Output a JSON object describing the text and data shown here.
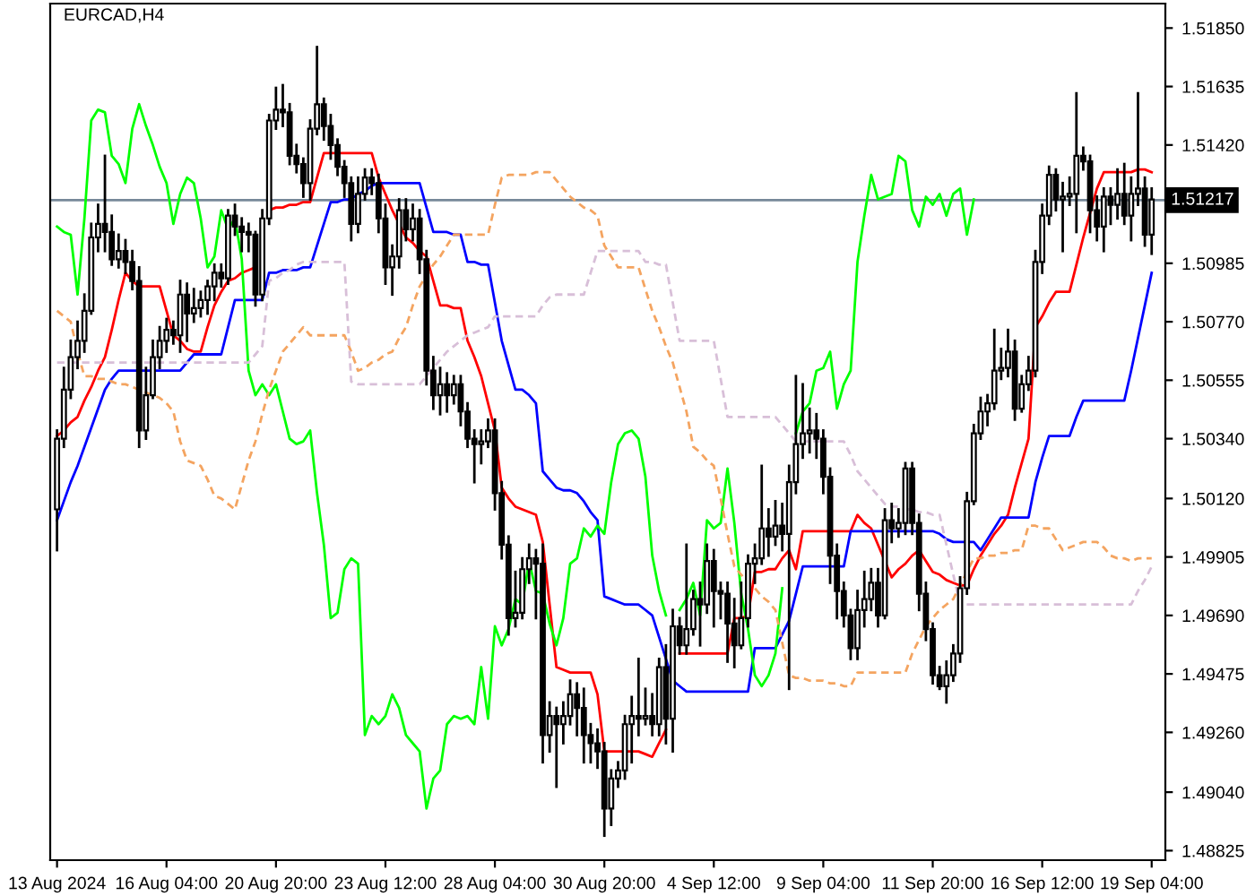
{
  "chart_data": {
    "type": "candlestick",
    "title": "EURCAD,H4",
    "categories": [
      "13 Aug 2024",
      null,
      null,
      null,
      null,
      null,
      null,
      null,
      null,
      null,
      null,
      null,
      null,
      null,
      null,
      null,
      "16 Aug 04:00",
      null,
      null,
      null,
      null,
      null,
      null,
      null,
      null,
      null,
      null,
      null,
      null,
      null,
      null,
      null,
      "20 Aug 20:00",
      null,
      null,
      null,
      null,
      null,
      null,
      null,
      null,
      null,
      null,
      null,
      null,
      null,
      null,
      null,
      "23 Aug 12:00",
      null,
      null,
      null,
      null,
      null,
      null,
      null,
      null,
      null,
      null,
      null,
      null,
      null,
      null,
      null,
      "28 Aug 04:00",
      null,
      null,
      null,
      null,
      null,
      null,
      null,
      null,
      null,
      null,
      null,
      null,
      null,
      null,
      null,
      "30 Aug 20:00",
      null,
      null,
      null,
      null,
      null,
      null,
      null,
      null,
      null,
      null,
      null,
      null,
      null,
      null,
      null,
      "4 Sep 12:00",
      null,
      null,
      null,
      null,
      null,
      null,
      null,
      null,
      null,
      null,
      null,
      null,
      null,
      null,
      null,
      "9 Sep 04:00",
      null,
      null,
      null,
      null,
      null,
      null,
      null,
      null,
      null,
      null,
      null,
      null,
      null,
      null,
      null,
      "11 Sep 20:00",
      null,
      null,
      null,
      null,
      null,
      null,
      null,
      null,
      null,
      null,
      null,
      null,
      null,
      null,
      null,
      "16 Sep 12:00",
      null,
      null,
      null,
      null,
      null,
      null,
      null,
      null,
      null,
      null,
      null,
      null,
      null,
      null,
      null,
      "19 Sep 04:00"
    ],
    "ohlc": [
      [
        1.5008,
        1.5037,
        1.4993,
        1.5034
      ],
      [
        1.5034,
        1.506,
        1.5031,
        1.5052
      ],
      [
        1.5052,
        1.507,
        1.5049,
        1.5064
      ],
      [
        1.5064,
        1.5077,
        1.506,
        1.507
      ],
      [
        1.507,
        1.5087,
        1.5066,
        1.5081
      ],
      [
        1.5081,
        1.5113,
        1.508,
        1.5108
      ],
      [
        1.5108,
        1.512,
        1.5103,
        1.5113
      ],
      [
        1.5113,
        1.5138,
        1.5103,
        1.511
      ],
      [
        1.511,
        1.5116,
        1.5098,
        1.51
      ],
      [
        1.51,
        1.5109,
        1.5097,
        1.5103
      ],
      [
        1.5103,
        1.5107,
        1.5095,
        1.5099
      ],
      [
        1.5099,
        1.5103,
        1.5089,
        1.5092
      ],
      [
        1.5092,
        1.5097,
        1.5031,
        1.5037
      ],
      [
        1.5037,
        1.506,
        1.5034,
        1.505
      ],
      [
        1.505,
        1.507,
        1.5049,
        1.5064
      ],
      [
        1.5064,
        1.5075,
        1.506,
        1.507
      ],
      [
        1.507,
        1.5078,
        1.5066,
        1.5074
      ],
      [
        1.5074,
        1.5077,
        1.5069,
        1.5072
      ],
      [
        1.5072,
        1.5092,
        1.5066,
        1.5087
      ],
      [
        1.5087,
        1.5091,
        1.507,
        1.508
      ],
      [
        1.508,
        1.5089,
        1.5077,
        1.5082
      ],
      [
        1.5082,
        1.5088,
        1.5079,
        1.5085
      ],
      [
        1.5085,
        1.5092,
        1.508,
        1.509
      ],
      [
        1.509,
        1.5098,
        1.5085,
        1.5095
      ],
      [
        1.5095,
        1.5098,
        1.509,
        1.5093
      ],
      [
        1.5093,
        1.5118,
        1.5091,
        1.5116
      ],
      [
        1.5116,
        1.512,
        1.5109,
        1.5112
      ],
      [
        1.5112,
        1.5115,
        1.5103,
        1.511
      ],
      [
        1.511,
        1.5113,
        1.5103,
        1.5109
      ],
      [
        1.5109,
        1.511,
        1.5083,
        1.5087
      ],
      [
        1.5087,
        1.5118,
        1.5085,
        1.5115
      ],
      [
        1.5115,
        1.5153,
        1.5113,
        1.5151
      ],
      [
        1.5151,
        1.5163,
        1.5148,
        1.5155
      ],
      [
        1.5155,
        1.5164,
        1.5149,
        1.5154
      ],
      [
        1.5154,
        1.5157,
        1.5135,
        1.5138
      ],
      [
        1.5138,
        1.5142,
        1.5132,
        1.5135
      ],
      [
        1.5135,
        1.5137,
        1.5123,
        1.5128
      ],
      [
        1.5128,
        1.5151,
        1.5122,
        1.5148
      ],
      [
        1.5148,
        1.5178,
        1.5146,
        1.5157
      ],
      [
        1.5157,
        1.5159,
        1.5144,
        1.5149
      ],
      [
        1.5149,
        1.5153,
        1.5137,
        1.5142
      ],
      [
        1.5142,
        1.5144,
        1.5131,
        1.5134
      ],
      [
        1.5134,
        1.5136,
        1.5123,
        1.5128
      ],
      [
        1.5128,
        1.513,
        1.5107,
        1.5113
      ],
      [
        1.5113,
        1.513,
        1.511,
        1.5124
      ],
      [
        1.5124,
        1.5133,
        1.5122,
        1.513
      ],
      [
        1.513,
        1.5133,
        1.5124,
        1.5128
      ],
      [
        1.5128,
        1.5131,
        1.511,
        1.5115
      ],
      [
        1.5115,
        1.512,
        1.5091,
        1.5097
      ],
      [
        1.5097,
        1.5105,
        1.5087,
        1.5101
      ],
      [
        1.5101,
        1.5122,
        1.5097,
        1.5118
      ],
      [
        1.5118,
        1.5122,
        1.5107,
        1.5111
      ],
      [
        1.5111,
        1.512,
        1.5107,
        1.5115
      ],
      [
        1.5115,
        1.5118,
        1.5095,
        1.51
      ],
      [
        1.51,
        1.5103,
        1.5054,
        1.5059
      ],
      [
        1.5059,
        1.5064,
        1.5045,
        1.505
      ],
      [
        1.505,
        1.506,
        1.5043,
        1.5054
      ],
      [
        1.5054,
        1.5058,
        1.5044,
        1.505
      ],
      [
        1.505,
        1.5057,
        1.5047,
        1.5054
      ],
      [
        1.5054,
        1.5057,
        1.5039,
        1.5044
      ],
      [
        1.5044,
        1.5047,
        1.5031,
        1.5034
      ],
      [
        1.5034,
        1.5037,
        1.5018,
        1.5032
      ],
      [
        1.5032,
        1.5037,
        1.5025,
        1.5033
      ],
      [
        1.5033,
        1.5041,
        1.5031,
        1.5037
      ],
      [
        1.5037,
        1.5041,
        1.5008,
        1.5014
      ],
      [
        1.5014,
        1.5018,
        1.499,
        1.4995
      ],
      [
        1.4995,
        1.4998,
        1.4962,
        1.4968
      ],
      [
        1.4968,
        1.4985,
        1.4965,
        1.497
      ],
      [
        1.497,
        1.499,
        1.4968,
        1.4986
      ],
      [
        1.4986,
        1.4995,
        1.4981,
        1.499
      ],
      [
        1.499,
        1.4993,
        1.4968,
        1.4988
      ],
      [
        1.4988,
        1.4995,
        1.4915,
        1.4925
      ],
      [
        1.4925,
        1.4937,
        1.4919,
        1.4932
      ],
      [
        1.4932,
        1.4935,
        1.4906,
        1.4929
      ],
      [
        1.4929,
        1.4937,
        1.4922,
        1.4932
      ],
      [
        1.4932,
        1.4945,
        1.4929,
        1.494
      ],
      [
        1.494,
        1.4944,
        1.4925,
        1.4935
      ],
      [
        1.4935,
        1.4942,
        1.4915,
        1.4925
      ],
      [
        1.4925,
        1.4929,
        1.4915,
        1.4922
      ],
      [
        1.4922,
        1.4927,
        1.4913,
        1.4919
      ],
      [
        1.4919,
        1.4922,
        1.4888,
        1.4898
      ],
      [
        1.4898,
        1.4912,
        1.4892,
        1.4909
      ],
      [
        1.4909,
        1.4915,
        1.4906,
        1.4912
      ],
      [
        1.4912,
        1.4932,
        1.4909,
        1.4929
      ],
      [
        1.4929,
        1.4939,
        1.4915,
        1.4932
      ],
      [
        1.4932,
        1.4953,
        1.4925,
        1.4931
      ],
      [
        1.4931,
        1.4942,
        1.4929,
        1.4932
      ],
      [
        1.4932,
        1.494,
        1.4925,
        1.4929
      ],
      [
        1.4929,
        1.4953,
        1.4925,
        1.495
      ],
      [
        1.495,
        1.4958,
        1.4922,
        1.4931
      ],
      [
        1.4931,
        1.4971,
        1.4919,
        1.4965
      ],
      [
        1.4965,
        1.4968,
        1.4955,
        1.4958
      ],
      [
        1.4958,
        1.4995,
        1.4955,
        1.4964
      ],
      [
        1.4964,
        1.4978,
        1.4962,
        1.4975
      ],
      [
        1.4975,
        1.4981,
        1.4958,
        1.4973
      ],
      [
        1.4973,
        1.4995,
        1.497,
        1.4989
      ],
      [
        1.4989,
        1.4993,
        1.4965,
        1.4978
      ],
      [
        1.4978,
        1.4981,
        1.4968,
        1.4977
      ],
      [
        1.4977,
        1.4981,
        1.4952,
        1.4966
      ],
      [
        1.4966,
        1.4975,
        1.495,
        1.4958
      ],
      [
        1.4958,
        1.4981,
        1.4957,
        1.4968
      ],
      [
        1.4968,
        1.4991,
        1.4965,
        1.4988
      ],
      [
        1.4988,
        1.4995,
        1.4981,
        1.499
      ],
      [
        1.499,
        1.5024,
        1.4988,
        1.5001
      ],
      [
        1.5001,
        1.5008,
        1.4991,
        1.4998
      ],
      [
        1.4998,
        1.5011,
        1.4995,
        1.5002
      ],
      [
        1.5002,
        1.501,
        1.4993,
        1.4999
      ],
      [
        1.4999,
        1.5024,
        1.4942,
        1.5018
      ],
      [
        1.5018,
        1.5057,
        1.5014,
        1.5032
      ],
      [
        1.5032,
        1.5054,
        1.5027,
        1.5036
      ],
      [
        1.5036,
        1.5045,
        1.5029,
        1.5037
      ],
      [
        1.5037,
        1.5043,
        1.5027,
        1.5034
      ],
      [
        1.5034,
        1.5037,
        1.5014,
        1.502
      ],
      [
        1.502,
        1.5023,
        1.4981,
        1.4991
      ],
      [
        1.4991,
        1.4995,
        1.4968,
        1.4978
      ],
      [
        1.4978,
        1.4981,
        1.4965,
        1.4969
      ],
      [
        1.4969,
        1.4971,
        1.4953,
        1.4957
      ],
      [
        1.4957,
        1.4978,
        1.4953,
        1.4971
      ],
      [
        1.4971,
        1.4985,
        1.4965,
        1.4975
      ],
      [
        1.4975,
        1.4986,
        1.4971,
        1.4981
      ],
      [
        1.4981,
        1.4986,
        1.4965,
        1.4969
      ],
      [
        1.4969,
        1.5008,
        1.4968,
        1.5004
      ],
      [
        1.5004,
        1.501,
        1.4996,
        1.5001
      ],
      [
        1.5001,
        1.5008,
        1.4998,
        1.5003
      ],
      [
        1.5003,
        1.5025,
        1.4999,
        1.5023
      ],
      [
        1.5023,
        1.5025,
        1.4999,
        1.5003
      ],
      [
        1.5003,
        1.5006,
        1.4971,
        1.4977
      ],
      [
        1.4977,
        1.4981,
        1.496,
        1.4964
      ],
      [
        1.4964,
        1.4966,
        1.4944,
        1.4947
      ],
      [
        1.4947,
        1.495,
        1.4942,
        1.4943
      ],
      [
        1.4943,
        1.4952,
        1.4937,
        1.4947
      ],
      [
        1.4947,
        1.4958,
        1.4945,
        1.4955
      ],
      [
        1.4955,
        1.4983,
        1.4952,
        1.4979
      ],
      [
        1.4979,
        1.5014,
        1.4977,
        1.5011
      ],
      [
        1.5011,
        1.5039,
        1.501,
        1.5036
      ],
      [
        1.5036,
        1.5049,
        1.5034,
        1.5044
      ],
      [
        1.5044,
        1.505,
        1.5039,
        1.5047
      ],
      [
        1.5047,
        1.5074,
        1.5045,
        1.5059
      ],
      [
        1.5059,
        1.5067,
        1.5056,
        1.506
      ],
      [
        1.506,
        1.5074,
        1.5057,
        1.5066
      ],
      [
        1.5066,
        1.507,
        1.5041,
        1.5045
      ],
      [
        1.5045,
        1.5057,
        1.5044,
        1.5054
      ],
      [
        1.5054,
        1.5064,
        1.5052,
        1.5059
      ],
      [
        1.5059,
        1.5103,
        1.5057,
        1.5099
      ],
      [
        1.5099,
        1.512,
        1.5095,
        1.5116
      ],
      [
        1.5116,
        1.5134,
        1.5113,
        1.5131
      ],
      [
        1.5131,
        1.5133,
        1.5118,
        1.5122
      ],
      [
        1.5122,
        1.5128,
        1.5103,
        1.5123
      ],
      [
        1.5123,
        1.513,
        1.512,
        1.5124
      ],
      [
        1.5124,
        1.5161,
        1.511,
        1.5138
      ],
      [
        1.5138,
        1.5141,
        1.5133,
        1.5136
      ],
      [
        1.5136,
        1.5138,
        1.511,
        1.5118
      ],
      [
        1.5118,
        1.5123,
        1.5107,
        1.5112
      ],
      [
        1.5112,
        1.5126,
        1.5103,
        1.5123
      ],
      [
        1.5123,
        1.5126,
        1.5113,
        1.512
      ],
      [
        1.512,
        1.5133,
        1.5115,
        1.5124
      ],
      [
        1.5124,
        1.5135,
        1.5113,
        1.5116
      ],
      [
        1.5116,
        1.513,
        1.5107,
        1.5124
      ],
      [
        1.5124,
        1.5161,
        1.512,
        1.5126
      ],
      [
        1.5126,
        1.513,
        1.5105,
        1.5109
      ],
      [
        1.5109,
        1.5126,
        1.5102,
        1.5122
      ]
    ],
    "series": [
      {
        "type": "line",
        "color": "#ff0000",
        "values": [
          1.5035,
          1.5037,
          1.504,
          1.5042,
          1.5048,
          1.5053,
          1.5059,
          1.5064,
          1.5074,
          1.5085,
          1.5095,
          1.5092,
          1.509,
          1.509,
          1.509,
          1.509,
          1.5081,
          1.5072,
          1.507,
          1.5067,
          1.5066,
          1.5066,
          1.5075,
          1.5083,
          1.5088,
          1.5092,
          1.5093,
          1.5095,
          1.5096,
          1.5097,
          null,
          1.5118,
          1.5119,
          1.5119,
          1.512,
          1.512,
          1.5121,
          1.5121,
          1.513,
          1.5139,
          1.5139,
          1.5139,
          1.5139,
          1.5139,
          1.5139,
          1.5139,
          1.5139,
          1.513,
          1.5124,
          1.5118,
          1.5113,
          1.5108,
          1.5106,
          1.5103,
          1.5101,
          1.5092,
          1.5083,
          1.5083,
          1.5082,
          1.5082,
          1.507,
          1.5064,
          1.5057,
          1.5047,
          1.5037,
          1.5016,
          1.5012,
          1.5009,
          1.5008,
          1.5007,
          1.5006,
          1.4996,
          1.4973,
          1.495,
          1.4949,
          1.4948,
          1.4948,
          1.4948,
          1.4948,
          1.494,
          1.4919,
          1.4919,
          1.4919,
          1.4919,
          1.4919,
          1.4919,
          1.4918,
          1.4917,
          1.4922,
          1.4927,
          null,
          1.4955,
          1.4955,
          1.4955,
          1.4955,
          1.4955,
          1.4955,
          1.4955,
          1.4955,
          1.4968,
          1.4968,
          1.4969,
          1.4985,
          1.4985,
          1.4986,
          1.4986,
          1.499,
          1.4993,
          1.4986,
          1.5,
          1.5,
          1.5,
          1.5,
          1.5,
          1.5,
          1.5,
          1.5,
          1.5006,
          1.5003,
          1.5001,
          1.4995,
          1.4989,
          1.4983,
          1.4986,
          1.4988,
          1.4991,
          1.4993,
          1.4989,
          1.4985,
          1.4984,
          1.4982,
          1.4981,
          1.498,
          1.498,
          1.4986,
          1.4991,
          1.4995,
          1.4999,
          1.5002,
          1.5006,
          1.5016,
          1.5025,
          1.5034,
          1.5075,
          1.5079,
          1.5084,
          1.5088,
          1.5088,
          1.5088,
          1.5098,
          1.5108,
          1.5117,
          1.5126,
          1.5132,
          1.5132,
          1.5132,
          1.5132,
          1.5132,
          1.5133,
          1.5133,
          1.5132
        ]
      },
      {
        "type": "line",
        "color": "#0000ff",
        "values": [
          1.5004,
          1.5011,
          1.5018,
          1.5024,
          1.5031,
          1.5038,
          1.5045,
          1.5052,
          1.5056,
          1.5059,
          1.5059,
          1.5059,
          1.5059,
          1.5059,
          1.5059,
          1.5059,
          1.5059,
          1.5059,
          1.5059,
          1.5062,
          1.5065,
          1.5065,
          1.5065,
          1.5065,
          1.5065,
          1.5075,
          1.5085,
          1.5085,
          1.5085,
          1.5085,
          1.5085,
          1.5095,
          1.5095,
          1.5096,
          1.5096,
          1.5096,
          1.5097,
          1.5097,
          1.5105,
          1.5113,
          1.5121,
          1.5121,
          1.5122,
          1.5122,
          1.5124,
          1.5125,
          1.5127,
          1.5128,
          1.5128,
          1.5128,
          1.5128,
          1.5128,
          1.5128,
          1.5128,
          1.5119,
          1.511,
          1.511,
          1.511,
          1.5109,
          1.5109,
          1.5099,
          1.5099,
          1.5098,
          1.5098,
          1.5084,
          1.507,
          1.5061,
          1.5052,
          1.5052,
          1.505,
          1.5047,
          1.5022,
          1.5019,
          1.5016,
          1.5015,
          1.5015,
          1.5014,
          1.5011,
          1.5007,
          1.5004,
          1.4976,
          1.4975,
          1.4974,
          1.4973,
          1.4973,
          1.4973,
          1.4971,
          1.4969,
          1.4961,
          1.4953,
          1.4945,
          1.4943,
          1.4941,
          1.4941,
          1.4941,
          1.4941,
          1.4941,
          1.4941,
          1.4941,
          1.4941,
          1.4941,
          1.4941,
          1.4957,
          1.4957,
          1.4957,
          1.4957,
          1.4962,
          1.4967,
          1.4977,
          1.4987,
          1.4987,
          1.4987,
          1.4987,
          1.4987,
          1.4987,
          1.4987,
          1.5,
          1.5,
          1.5,
          1.5,
          1.5,
          1.5,
          1.5,
          1.5,
          1.5,
          1.5,
          1.5,
          1.5,
          1.5,
          1.4999,
          1.4997,
          1.4996,
          1.4996,
          1.4996,
          1.4996,
          1.4993,
          1.4997,
          1.5001,
          1.5005,
          1.5005,
          1.5005,
          1.5005,
          1.5005,
          1.5018,
          1.5027,
          1.5035,
          1.5035,
          1.5035,
          1.5035,
          1.5042,
          1.5048,
          1.5048,
          1.5048,
          1.5048,
          1.5048,
          1.5048,
          1.5048,
          1.5059,
          1.5071,
          1.5083,
          1.5095
        ]
      },
      {
        "type": "line",
        "color": "#00ff00",
        "values": [
          1.5112,
          1.511,
          1.5109,
          1.5087,
          1.5115,
          1.5151,
          1.5155,
          1.5154,
          1.5138,
          1.5135,
          1.5128,
          1.5148,
          1.5157,
          1.5149,
          1.5142,
          1.5134,
          1.5128,
          1.5113,
          1.5124,
          1.513,
          1.5128,
          1.5115,
          1.5097,
          1.5101,
          1.5118,
          1.5111,
          1.5115,
          1.51,
          1.5059,
          1.505,
          1.5054,
          1.505,
          1.5054,
          1.5044,
          1.5034,
          1.5032,
          1.5033,
          1.5037,
          1.5014,
          1.4995,
          1.4968,
          1.497,
          1.4986,
          1.499,
          1.4988,
          1.4925,
          1.4932,
          1.4929,
          1.4932,
          1.494,
          1.4935,
          1.4925,
          1.4922,
          1.4919,
          1.4898,
          1.4909,
          1.4912,
          1.4929,
          1.4932,
          1.4931,
          1.4932,
          1.4929,
          1.495,
          1.4931,
          1.4965,
          1.4958,
          1.4964,
          1.4975,
          1.4973,
          1.4989,
          1.4978,
          1.4977,
          1.4966,
          1.4958,
          1.4968,
          1.4988,
          1.499,
          1.5001,
          1.4998,
          1.5002,
          1.4999,
          1.5018,
          1.5032,
          1.5036,
          1.5037,
          1.5034,
          1.502,
          1.4991,
          1.4978,
          1.4969,
          null,
          1.4971,
          1.4975,
          1.4981,
          1.4969,
          1.5004,
          1.5001,
          1.5003,
          1.5023,
          1.5003,
          1.4977,
          1.4964,
          1.4947,
          1.4943,
          1.4947,
          1.4955,
          1.4979,
          null,
          1.5036,
          1.5044,
          1.5047,
          1.5059,
          1.506,
          1.5066,
          1.5045,
          1.5054,
          1.5059,
          1.5099,
          1.5116,
          1.5131,
          1.5122,
          1.5123,
          1.5124,
          1.5138,
          1.5136,
          1.5118,
          1.5112,
          1.5123,
          1.512,
          1.5124,
          1.5116,
          1.5124,
          1.5126,
          1.5109,
          1.5122,
          null,
          null,
          null,
          null,
          null,
          null,
          null,
          null,
          null,
          null,
          null,
          null,
          null,
          null,
          null,
          null,
          null,
          null,
          null,
          null,
          null,
          null,
          null,
          null,
          null,
          null
        ]
      },
      {
        "type": "line",
        "color": "#f4a460",
        "line_style": "dashed",
        "values": [
          1.5081,
          1.5079,
          1.5077,
          1.5066,
          1.5057,
          1.5057,
          1.5056,
          1.5056,
          1.5055,
          1.5054,
          1.5054,
          1.5053,
          1.5052,
          1.5051,
          1.505,
          1.5049,
          1.5047,
          1.5044,
          1.5033,
          1.5026,
          1.5025,
          1.5024,
          1.5019,
          1.5013,
          1.5012,
          1.501,
          1.5008,
          1.5017,
          1.5026,
          1.5033,
          1.5043,
          1.5052,
          1.5059,
          1.5066,
          1.5069,
          1.5072,
          1.5075,
          1.5072,
          1.5072,
          1.5072,
          1.5072,
          1.5072,
          1.5072,
          1.5066,
          1.5059,
          1.506,
          1.5062,
          1.5063,
          1.5065,
          1.5066,
          1.5071,
          1.5075,
          1.5083,
          1.509,
          1.5094,
          1.5098,
          1.5101,
          1.5105,
          1.5109,
          1.5109,
          1.5109,
          1.5109,
          1.5109,
          1.5109,
          1.512,
          1.513,
          1.5131,
          1.5131,
          1.5131,
          1.5131,
          1.5132,
          1.5132,
          1.5132,
          1.5129,
          1.5126,
          1.5123,
          1.5121,
          1.5119,
          1.5118,
          1.5116,
          1.5105,
          1.5101,
          1.5097,
          1.5097,
          1.5097,
          1.5097,
          1.5089,
          1.5081,
          1.5075,
          1.5068,
          1.5062,
          1.5053,
          1.5044,
          1.5031,
          1.5029,
          1.5026,
          1.5024,
          1.5012,
          1.4999,
          1.4987,
          1.4984,
          1.4981,
          1.4979,
          1.4976,
          1.4974,
          1.4971,
          1.4959,
          1.4947,
          1.4946,
          1.4946,
          1.4945,
          1.4945,
          1.4945,
          1.4944,
          1.4944,
          1.4943,
          1.4943,
          1.4948,
          1.4948,
          1.4948,
          1.4948,
          1.4948,
          1.4948,
          1.4948,
          1.4948,
          1.4955,
          1.496,
          1.4965,
          1.4968,
          1.4971,
          1.4973,
          1.4975,
          1.498,
          1.4985,
          1.499,
          1.499,
          1.4991,
          1.4991,
          1.4992,
          1.4992,
          1.4993,
          1.4993,
          1.5002,
          1.5002,
          1.5001,
          1.5001,
          1.4997,
          1.4993,
          1.4994,
          1.4995,
          1.4996,
          1.4996,
          1.4996,
          1.4994,
          1.4991,
          1.499,
          1.499,
          1.4989,
          1.499,
          1.499,
          1.499
        ]
      },
      {
        "type": "line",
        "color": "#d8bfd8",
        "line_style": "dashed",
        "values": [
          1.5062,
          1.5062,
          1.5062,
          1.5062,
          1.5062,
          1.5062,
          1.5062,
          1.5062,
          1.5062,
          1.5062,
          1.5062,
          1.5062,
          1.5062,
          1.5062,
          1.5062,
          1.5062,
          1.5062,
          1.5062,
          1.5062,
          1.5062,
          1.5062,
          1.5062,
          1.5062,
          1.5062,
          1.5062,
          1.5062,
          1.5062,
          1.5062,
          1.5062,
          1.5065,
          1.5068,
          1.5092,
          1.5093,
          1.5095,
          1.5096,
          1.5098,
          1.5099,
          1.5099,
          1.5099,
          1.5099,
          1.5099,
          1.5099,
          1.5099,
          1.5055,
          1.5054,
          1.5054,
          1.5054,
          1.5054,
          1.5054,
          1.5054,
          1.5054,
          1.5054,
          1.5054,
          1.5054,
          1.5057,
          1.506,
          1.5063,
          1.5066,
          1.5068,
          1.507,
          1.5072,
          1.5073,
          1.5074,
          1.5075,
          1.5079,
          1.5079,
          1.5079,
          1.5079,
          1.5079,
          1.5079,
          1.5079,
          1.5083,
          1.5086,
          1.5087,
          1.5087,
          1.5087,
          1.5087,
          1.5087,
          1.5095,
          1.5103,
          1.5103,
          1.5103,
          1.5103,
          1.5103,
          1.5103,
          1.5103,
          1.5099,
          1.5099,
          1.5098,
          1.5098,
          1.5084,
          1.507,
          1.507,
          1.507,
          1.507,
          1.507,
          1.507,
          1.5056,
          1.5042,
          1.5042,
          1.5042,
          1.5042,
          1.5042,
          1.5042,
          1.5042,
          1.5042,
          1.5039,
          1.5036,
          1.5033,
          1.5033,
          1.5033,
          1.5033,
          1.5033,
          1.5033,
          1.5033,
          1.5033,
          1.5028,
          1.5022,
          1.5019,
          1.5016,
          1.5013,
          1.501,
          1.5009,
          1.5009,
          1.5008,
          1.5008,
          1.5007,
          1.5007,
          1.5006,
          1.5006,
          1.4995,
          1.4984,
          1.4973,
          1.4973,
          1.4973,
          1.4973,
          1.4973,
          1.4973,
          1.4973,
          1.4973,
          1.4973,
          1.4973,
          1.4973,
          1.4973,
          1.4973,
          1.4973,
          1.4973,
          1.4973,
          1.4973,
          1.4973,
          1.4973,
          1.4973,
          1.4973,
          1.4973,
          1.4973,
          1.4973,
          1.4973,
          1.4973,
          1.4978,
          1.4982,
          1.4987
        ]
      }
    ],
    "ref_lines": [
      {
        "axis": "y",
        "value": 1.51217,
        "label": "1.51217",
        "color": "#778899"
      }
    ],
    "ylim": [
      1.4879,
      1.5194
    ],
    "yticks": [
      {
        "value": 1.5185,
        "label": "1.51850"
      },
      {
        "value": 1.51635,
        "label": "1.51635"
      },
      {
        "value": 1.5142,
        "label": "1.51420"
      },
      {
        "value": 1.50985,
        "label": "1.50985"
      },
      {
        "value": 1.5077,
        "label": "1.50770"
      },
      {
        "value": 1.50555,
        "label": "1.50555"
      },
      {
        "value": 1.5034,
        "label": "1.50340"
      },
      {
        "value": 1.5012,
        "label": "1.50120"
      },
      {
        "value": 1.49905,
        "label": "1.49905"
      },
      {
        "value": 1.4969,
        "label": "1.49690"
      },
      {
        "value": 1.49475,
        "label": "1.49475"
      },
      {
        "value": 1.4926,
        "label": "1.49260"
      },
      {
        "value": 1.4904,
        "label": "1.49040"
      },
      {
        "value": 1.48825,
        "label": "1.48825"
      }
    ],
    "grid": false,
    "legend": false,
    "marker": "none"
  }
}
